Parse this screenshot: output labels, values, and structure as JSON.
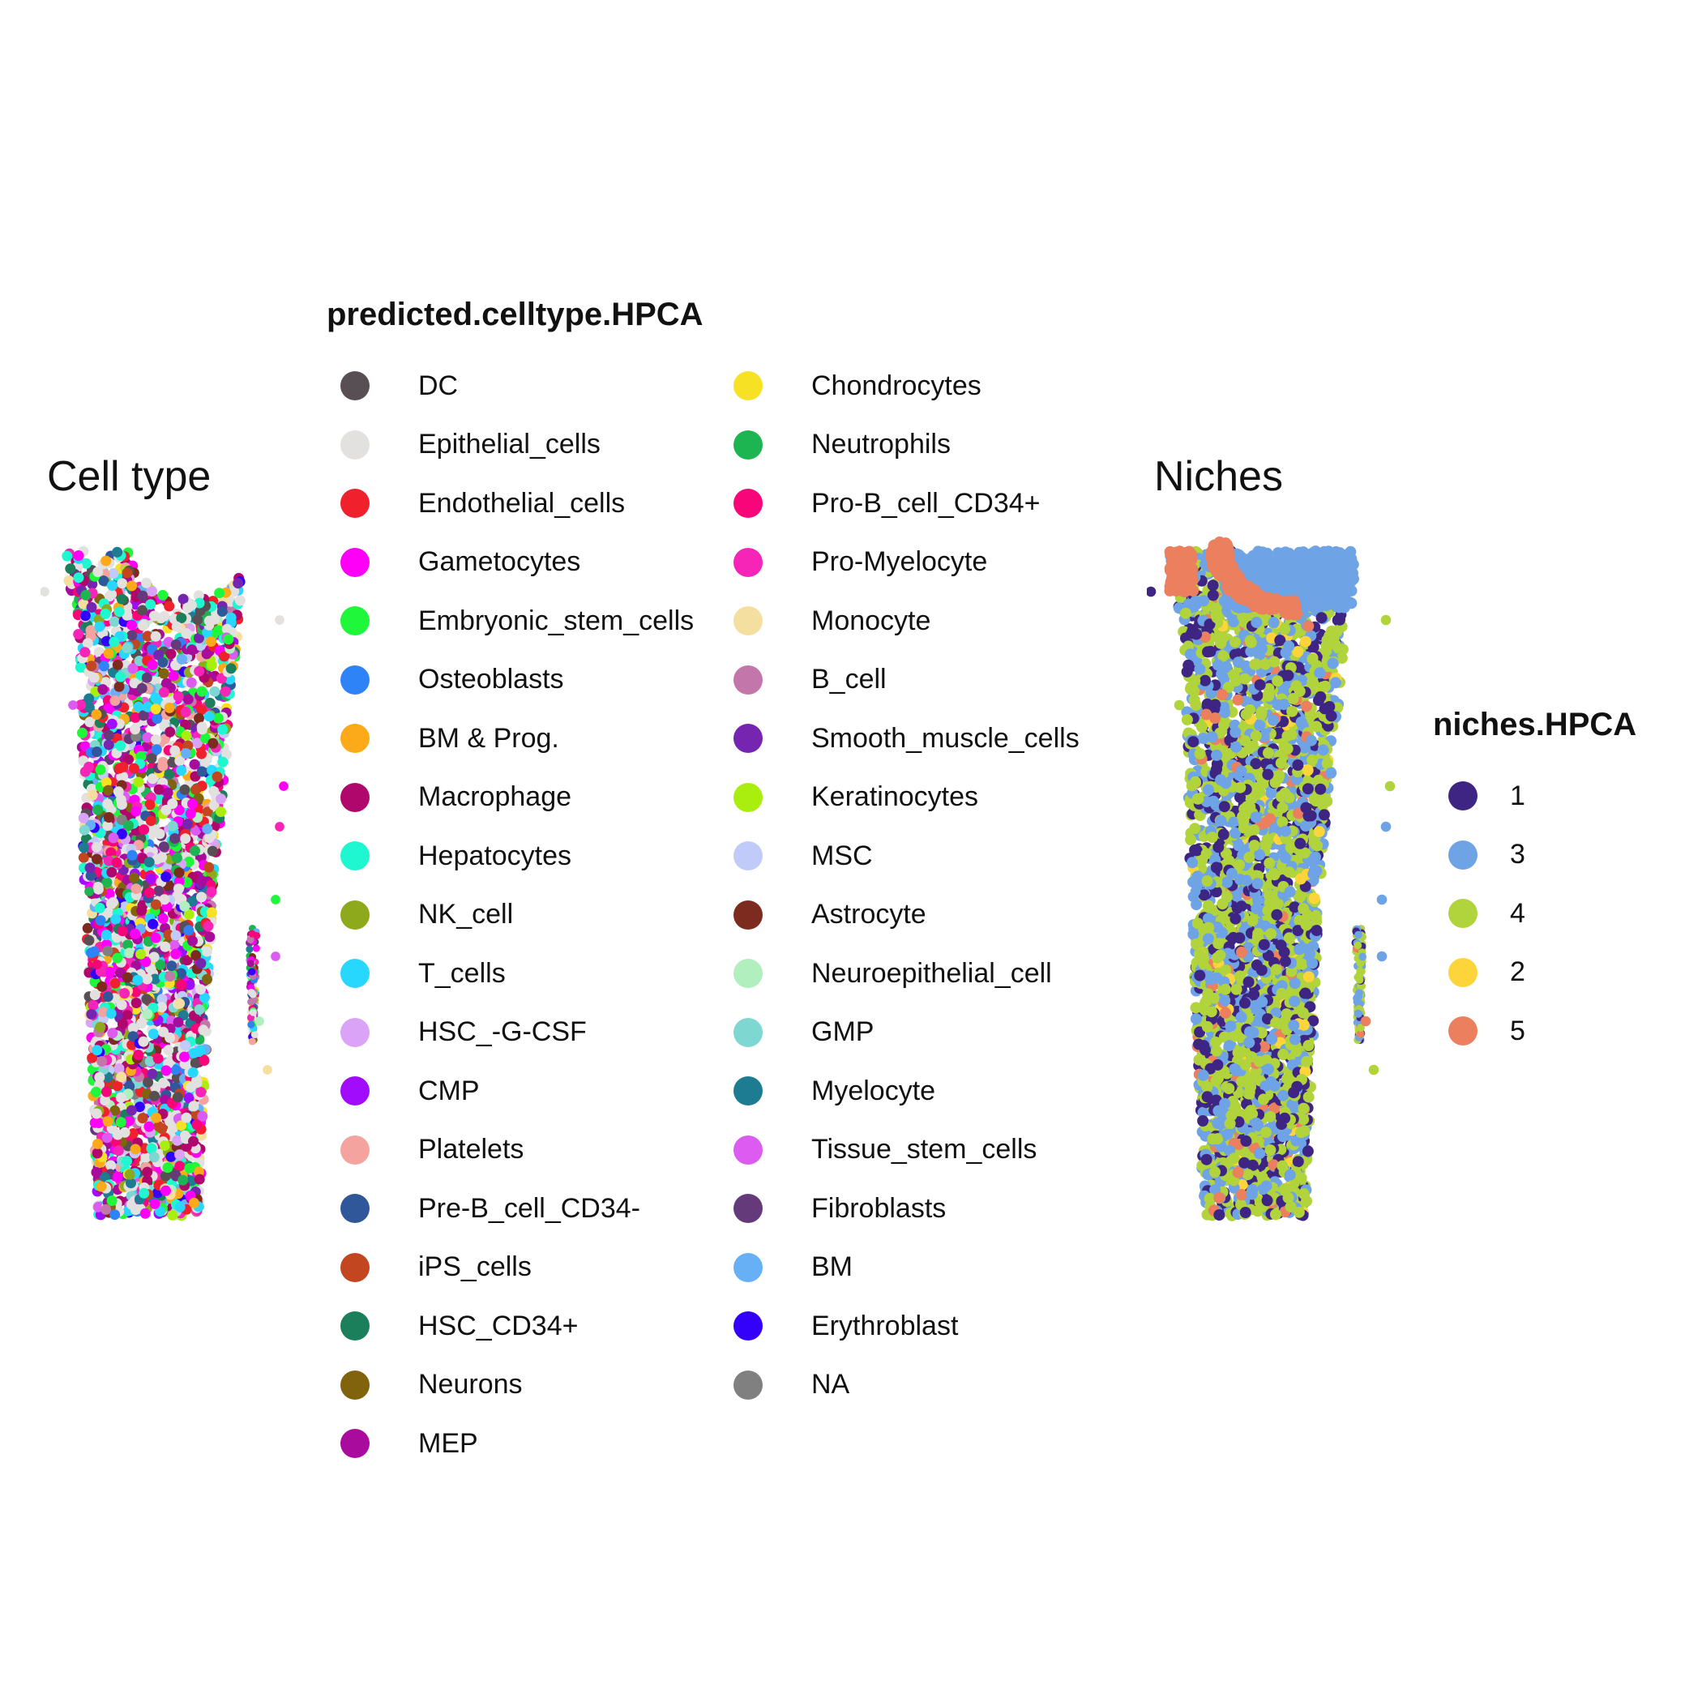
{
  "panels": {
    "left_title": "Cell type",
    "right_title": "Niches"
  },
  "chart_data": [
    {
      "type": "scatter",
      "title": "Cell type",
      "description_of_marks": "spatial spot map colored by predicted cell type",
      "legend": {
        "title": "predicted.celltype.HPCA",
        "placement": "right",
        "entries": [
          {
            "name": "DC",
            "color": "#574f54"
          },
          {
            "name": "Epithelial_cells",
            "color": "#e3e0e0"
          },
          {
            "name": "Endothelial_cells",
            "color": "#f0212d"
          },
          {
            "name": "Gametocytes",
            "color": "#ff00f6"
          },
          {
            "name": "Embryonic_stem_cells",
            "color": "#1ff73b"
          },
          {
            "name": "Osteoblasts",
            "color": "#2e84f7"
          },
          {
            "name": "BM & Prog.",
            "color": "#fdaa1a"
          },
          {
            "name": "Macrophage",
            "color": "#b0076d"
          },
          {
            "name": "Hepatocytes",
            "color": "#1ff7d0"
          },
          {
            "name": "NK_cell",
            "color": "#8ea91b"
          },
          {
            "name": "T_cells",
            "color": "#27d7fd"
          },
          {
            "name": "HSC_-G-CSF",
            "color": "#dba3f7"
          },
          {
            "name": "CMP",
            "color": "#a10cfc"
          },
          {
            "name": "Platelets",
            "color": "#f5a39f"
          },
          {
            "name": "Pre-B_cell_CD34-",
            "color": "#30579a"
          },
          {
            "name": "iPS_cells",
            "color": "#c2461f"
          },
          {
            "name": "HSC_CD34+",
            "color": "#1a7f5a"
          },
          {
            "name": "Neurons",
            "color": "#81620d"
          },
          {
            "name": "MEP",
            "color": "#a90c9c"
          },
          {
            "name": "Chondrocytes",
            "color": "#f6e125"
          },
          {
            "name": "Neutrophils",
            "color": "#1db552"
          },
          {
            "name": "Pro-B_cell_CD34+",
            "color": "#f70579"
          },
          {
            "name": "Pro-Myelocyte",
            "color": "#f724b8"
          },
          {
            "name": "Monocyte",
            "color": "#f5dfa0"
          },
          {
            "name": "B_cell",
            "color": "#c276a9"
          },
          {
            "name": "Smooth_muscle_cells",
            "color": "#7625b1"
          },
          {
            "name": "Keratinocytes",
            "color": "#aaee10"
          },
          {
            "name": "MSC",
            "color": "#c1cbfa"
          },
          {
            "name": "Astrocyte",
            "color": "#7d2b1e"
          },
          {
            "name": "Neuroepithelial_cell",
            "color": "#b2efbf"
          },
          {
            "name": "GMP",
            "color": "#7fd7d1"
          },
          {
            "name": "Myelocyte",
            "color": "#1d7c92"
          },
          {
            "name": "Tissue_stem_cells",
            "color": "#dc5cf2"
          },
          {
            "name": "Fibroblasts",
            "color": "#643a7b"
          },
          {
            "name": "BM",
            "color": "#68b0f6"
          },
          {
            "name": "Erythroblast",
            "color": "#3300fa"
          },
          {
            "name": "NA",
            "color": "#808080"
          }
        ]
      }
    },
    {
      "type": "scatter",
      "title": "Niches",
      "legend": {
        "title": "niches.HPCA",
        "placement": "right",
        "entries": [
          {
            "name": "1",
            "color": "#3e2483"
          },
          {
            "name": "3",
            "color": "#6ea3e6"
          },
          {
            "name": "4",
            "color": "#b1d33b"
          },
          {
            "name": "2",
            "color": "#fdd53b"
          },
          {
            "name": "5",
            "color": "#eb7f5e"
          }
        ]
      }
    }
  ]
}
